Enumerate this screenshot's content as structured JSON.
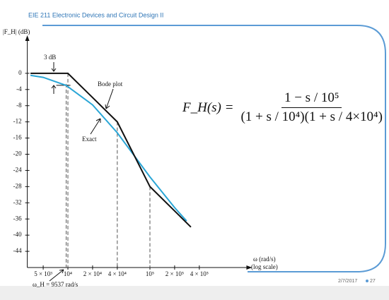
{
  "header": "EIE 211 Electronic Devices and Circuit Design II",
  "footer": {
    "date": "2/7/2017",
    "page": "27"
  },
  "formula": {
    "lhs": "F_H(s) =",
    "numerator": "1 − s / 10⁵",
    "denominator": "(1 + s / 10⁴)(1 + s / 4×10⁴)"
  },
  "chart_data": {
    "type": "line",
    "y_label": "|F_H|  (dB)",
    "x_label": "ω (rad/s)",
    "x_scale_label": "(log scale)",
    "log_x": true,
    "grid": false,
    "xlim": [
      3200,
      1500000
    ],
    "ylim": [
      -48,
      8
    ],
    "xticks": [
      {
        "value": 5000,
        "label": "5 × 10³"
      },
      {
        "value": 10000,
        "label": "10⁴"
      },
      {
        "value": 20000,
        "label": "2 × 10⁴"
      },
      {
        "value": 40000,
        "label": "4 × 10⁴"
      },
      {
        "value": 100000,
        "label": "10⁵"
      },
      {
        "value": 200000,
        "label": "2 × 10⁵"
      },
      {
        "value": 400000,
        "label": "4 × 10⁵"
      }
    ],
    "yticks": [
      0,
      -4,
      -8,
      -12,
      -16,
      -20,
      -24,
      -28,
      -32,
      -36,
      -40,
      -44
    ],
    "series": [
      {
        "name": "Bode plot",
        "color": "#111111",
        "x": [
          3500,
          10000,
          40000,
          100000,
          316000
        ],
        "values": [
          0,
          0,
          -12,
          -28,
          -38
        ]
      },
      {
        "name": "Exact",
        "color": "#2aa6d6",
        "x": [
          3500,
          5000,
          9537,
          20000,
          40000,
          100000,
          200000,
          280000
        ],
        "values": [
          -0.5,
          -1.0,
          -3.0,
          -7.8,
          -14.7,
          -25.6,
          -33.2,
          -36.5
        ]
      }
    ],
    "annotations": {
      "three_db": "3 dB",
      "cutoff_label": "ω_H = 9537 rad/s",
      "cutoff": 9537
    }
  }
}
